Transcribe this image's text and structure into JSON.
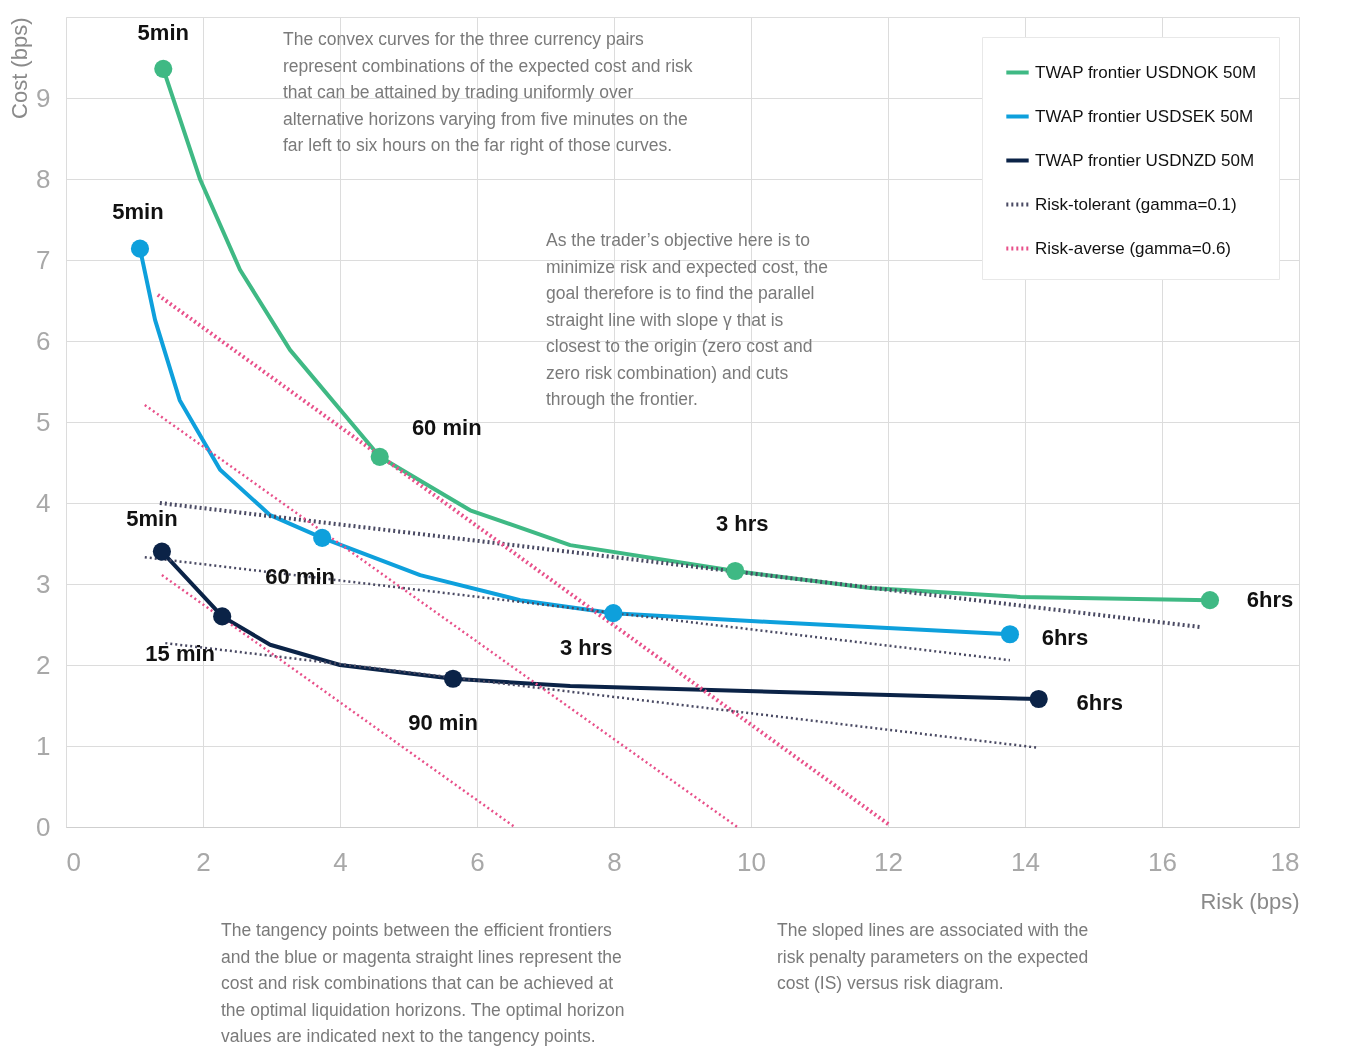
{
  "chart_data": {
    "type": "line",
    "xlabel": "Risk (bps)",
    "ylabel": "Cost (bps)",
    "xlim": [
      0,
      18
    ],
    "ylim": [
      0,
      10
    ],
    "xticks": [
      0,
      2,
      4,
      6,
      8,
      10,
      12,
      14,
      16,
      18
    ],
    "yticks": [
      0,
      1,
      2,
      3,
      4,
      5,
      6,
      7,
      8,
      9
    ],
    "grid": true,
    "legend": "top right",
    "line_style": "solid",
    "series": [
      {
        "name": "TWAP frontier USDNOK 50M",
        "color": "#3fb984",
        "x": [
          1.42,
          1.96,
          2.54,
          3.27,
          4.58,
          5.9,
          7.36,
          9.77,
          11.74,
          13.93,
          16.7
        ],
        "values": [
          9.36,
          7.99,
          6.88,
          5.89,
          4.57,
          3.91,
          3.48,
          3.16,
          2.95,
          2.84,
          2.8
        ]
      },
      {
        "name": "TWAP frontier USDSEK 50M",
        "color": "#0ea0dc",
        "x": [
          1.08,
          1.3,
          1.66,
          2.25,
          2.98,
          3.74,
          5.17,
          6.63,
          7.99,
          10.28,
          13.78
        ],
        "values": [
          7.14,
          6.26,
          5.27,
          4.41,
          3.85,
          3.57,
          3.11,
          2.8,
          2.64,
          2.53,
          2.38
        ]
      },
      {
        "name": "TWAP frontier USDNZD 50M",
        "color": "#0b2347",
        "x": [
          1.4,
          2.28,
          2.98,
          4.0,
          5.65,
          7.36,
          10.28,
          14.2
        ],
        "values": [
          3.4,
          2.6,
          2.25,
          2.0,
          1.83,
          1.74,
          1.67,
          1.58
        ]
      },
      {
        "name": "Risk-tolerant (gamma=0.1)",
        "color": "#4a4a63",
        "line_style": "dotted",
        "x": [
          1.37,
          16.55
        ],
        "values": [
          4.0,
          2.47
        ]
      },
      {
        "color": "#4a4a63",
        "line_style": "dotted",
        "x": [
          1.15,
          13.78
        ],
        "values": [
          3.33,
          2.06
        ]
      },
      {
        "color": "#4a4a63",
        "line_style": "dotted",
        "x": [
          1.45,
          14.18
        ],
        "values": [
          2.27,
          0.98
        ]
      },
      {
        "name": "Risk-averse (gamma=0.6)",
        "color": "#e8508a",
        "line_style": "dotted",
        "x": [
          1.34,
          12.03
        ],
        "values": [
          6.57,
          0.02
        ]
      },
      {
        "color": "#e8508a",
        "line_style": "dotted",
        "x": [
          1.15,
          9.8
        ],
        "values": [
          5.21,
          0.0
        ]
      },
      {
        "color": "#e8508a",
        "line_style": "dotted",
        "x": [
          1.4,
          6.55
        ],
        "values": [
          3.11,
          0.0
        ]
      },
      {
        "type": "scatter",
        "marker": "circle",
        "color": "#3fb984",
        "x": [
          1.42,
          4.58,
          9.77,
          16.7
        ],
        "values": [
          9.36,
          4.57,
          3.16,
          2.8
        ]
      },
      {
        "type": "scatter",
        "marker": "circle",
        "color": "#0ea0dc",
        "x": [
          1.08,
          3.74,
          7.99,
          13.78
        ],
        "values": [
          7.14,
          3.57,
          2.64,
          2.38
        ]
      },
      {
        "type": "scatter",
        "marker": "circle",
        "color": "#0b2347",
        "x": [
          1.4,
          2.28,
          5.65,
          14.2
        ],
        "values": [
          3.4,
          2.6,
          1.83,
          1.58
        ]
      }
    ],
    "annotations": [
      "The convex curves for the three currency pairs\nrepresent combinations of the expected cost and risk\nthat can be attained by trading uniformly over\nalternative horizons varying from five minutes on the\nfar left to six hours on the far right of those curves.",
      "As the trader’s objective here is to\nminimize risk and expected cost, the\ngoal therefore is to find the parallel\nstraight line with slope γ that is\nclosest to the origin (zero cost and\nzero risk combination) and cuts\nthrough the frontier.",
      "The tangency points between the efficient frontiers\nand the blue or magenta straight lines represent the\ncost and risk combinations that can be achieved at\nthe optimal liquidation horizons. The optimal horizon\nvalues are indicated next to the tangency points.",
      "The sloped lines are associated with the\nrisk penalty parameters on the expected\ncost (IS) versus risk diagram.",
      {
        "text": "5min",
        "x": 1.42,
        "y": 9.36
      },
      {
        "text": "5min",
        "x": 1.08,
        "y": 7.14
      },
      {
        "text": "5min",
        "x": 1.4,
        "y": 3.4
      },
      {
        "text": "60 min",
        "x": 4.58,
        "y": 4.57
      },
      {
        "text": "60 min",
        "x": 3.74,
        "y": 3.57
      },
      {
        "text": "15 min",
        "x": 2.28,
        "y": 2.6
      },
      {
        "text": "3 hrs",
        "x": 9.77,
        "y": 3.16
      },
      {
        "text": "3 hrs",
        "x": 7.99,
        "y": 2.64
      },
      {
        "text": "90 min",
        "x": 5.65,
        "y": 1.83
      },
      {
        "text": "6hrs",
        "x": 16.7,
        "y": 2.8
      },
      {
        "text": "6hrs",
        "x": 13.78,
        "y": 2.38
      },
      {
        "text": "6hrs",
        "x": 14.2,
        "y": 1.58
      }
    ]
  }
}
